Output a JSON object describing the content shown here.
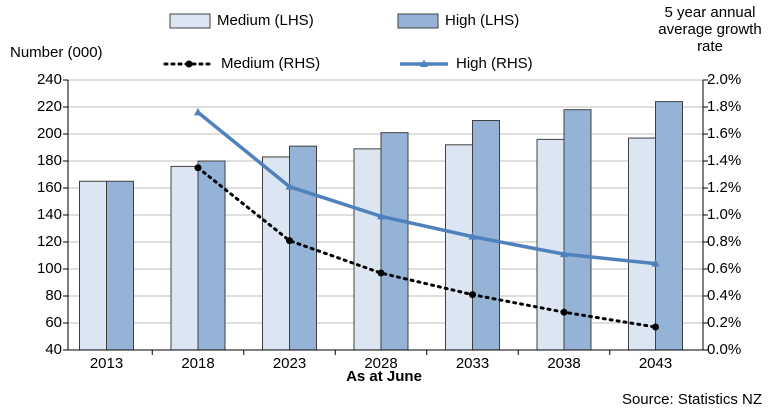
{
  "chart_data": {
    "type": "bar-line",
    "ylabel": "Number (000)",
    "y2label": "5 year annual average growth rate",
    "xlabel": "As at June",
    "source": "Source: Statistics NZ",
    "categories": [
      "2013",
      "2018",
      "2023",
      "2028",
      "2033",
      "2038",
      "2043"
    ],
    "series": [
      {
        "name": "Medium (LHS)",
        "type": "bar",
        "color": "#dce6f2",
        "values": [
          165,
          176,
          183,
          189,
          192,
          196,
          197
        ]
      },
      {
        "name": "High (LHS)",
        "type": "bar",
        "color": "#95b3d7",
        "values": [
          165,
          180,
          191,
          201,
          210,
          218,
          224
        ]
      },
      {
        "name": "Medium (RHS)",
        "type": "line",
        "axis": "y2",
        "color": "#000000",
        "values": [
          null,
          1.35,
          0.81,
          0.57,
          0.41,
          0.28,
          0.17
        ]
      },
      {
        "name": "High (RHS)",
        "type": "line",
        "axis": "y2",
        "color": "#4f81bd",
        "values": [
          null,
          1.76,
          1.21,
          0.99,
          0.84,
          0.71,
          0.64
        ]
      }
    ],
    "ylim": [
      40,
      240
    ],
    "yticks": [
      40,
      60,
      80,
      100,
      120,
      140,
      160,
      180,
      200,
      220,
      240
    ],
    "y2lim": [
      0,
      2
    ],
    "y2ticks": [
      {
        "value": 0,
        "label": "0.0%"
      },
      {
        "value": 0.2,
        "label": "0.2%"
      },
      {
        "value": 0.4,
        "label": "0.4%"
      },
      {
        "value": 0.6,
        "label": "0.6%"
      },
      {
        "value": 0.8,
        "label": "0.8%"
      },
      {
        "value": 1,
        "label": "1.0%"
      },
      {
        "value": 1.2,
        "label": "1.2%"
      },
      {
        "value": 1.4,
        "label": "1.4%"
      },
      {
        "value": 1.6,
        "label": "1.6%"
      },
      {
        "value": 1.8,
        "label": "1.8%"
      },
      {
        "value": 2,
        "label": "2.0%"
      }
    ],
    "grid": true
  }
}
